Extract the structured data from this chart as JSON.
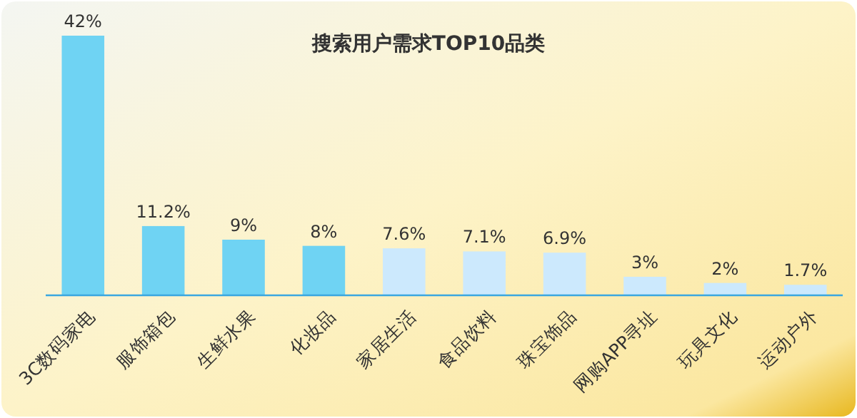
{
  "chart_data": {
    "type": "bar",
    "title": "搜索用户需求TOP10品类",
    "categories": [
      "3C数码家电",
      "服饰箱包",
      "生鲜水果",
      "化妆品",
      "家居生活",
      "食品饮料",
      "珠宝饰品",
      "网购APP寻址",
      "玩具文化",
      "运动户外"
    ],
    "values": [
      42,
      11.2,
      9,
      8,
      7.6,
      7.1,
      6.9,
      3,
      2,
      1.7
    ],
    "value_labels": [
      "42%",
      "11.2%",
      "9%",
      "8%",
      "7.6%",
      "7.1%",
      "6.9%",
      "3%",
      "2%",
      "1.7%"
    ],
    "colors": [
      "#6fd3f3",
      "#6fd3f3",
      "#6fd3f3",
      "#6fd3f3",
      "#cce9fd",
      "#cce9fd",
      "#cce9fd",
      "#cce9fd",
      "#cce9fd",
      "#cce9fd"
    ]
  }
}
